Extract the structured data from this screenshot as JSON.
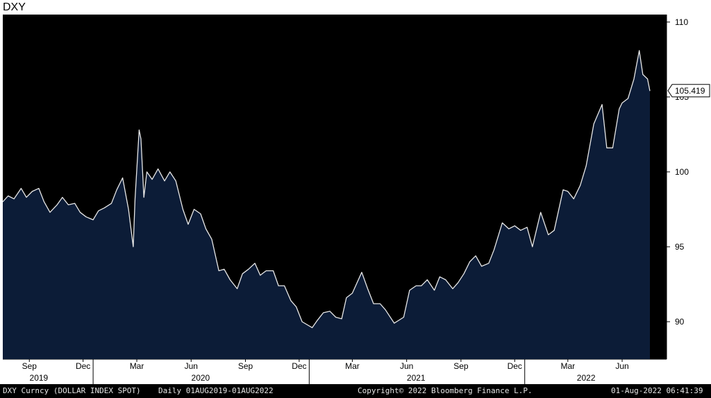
{
  "window_title": "DXY",
  "footer": {
    "ticker": "DXY Curncy (DOLLAR INDEX SPOT)",
    "range": "Daily 01AUG2019-01AUG2022",
    "copyright": "Copyright© 2022 Bloomberg Finance L.P.",
    "timestamp": "01-Aug-2022 06:41:39"
  },
  "chart_data": {
    "type": "area",
    "title": "DXY",
    "xlabel": "",
    "ylabel": "",
    "ylim": [
      87.5,
      110.5
    ],
    "yticks": [
      90,
      95,
      100,
      105,
      110
    ],
    "month_ticks": [
      {
        "label": "Sep",
        "date": "2019-09-15"
      },
      {
        "label": "Dec",
        "date": "2019-12-15"
      },
      {
        "label": "Mar",
        "date": "2020-03-15"
      },
      {
        "label": "Jun",
        "date": "2020-06-15"
      },
      {
        "label": "Sep",
        "date": "2020-09-15"
      },
      {
        "label": "Dec",
        "date": "2020-12-15"
      },
      {
        "label": "Mar",
        "date": "2021-03-15"
      },
      {
        "label": "Jun",
        "date": "2021-06-15"
      },
      {
        "label": "Sep",
        "date": "2021-09-15"
      },
      {
        "label": "Dec",
        "date": "2021-12-15"
      },
      {
        "label": "Mar",
        "date": "2022-03-15"
      },
      {
        "label": "Jun",
        "date": "2022-06-15"
      }
    ],
    "year_labels": [
      {
        "label": "2019",
        "date": "2019-10-01"
      },
      {
        "label": "2020",
        "date": "2020-07-01"
      },
      {
        "label": "2021",
        "date": "2021-07-01"
      },
      {
        "label": "2022",
        "date": "2022-04-15"
      }
    ],
    "year_dividers": [
      "2020-01-01",
      "2021-01-01",
      "2022-01-01"
    ],
    "last_value": "105.419",
    "colors": {
      "background": "#000000",
      "fill": "#0c1c37",
      "line": "#e8e8e8",
      "axis_text": "#000000"
    },
    "series": [
      {
        "name": "DXY Curncy",
        "x": [
          "2019-08-01",
          "2019-08-10",
          "2019-08-20",
          "2019-09-01",
          "2019-09-10",
          "2019-09-20",
          "2019-10-01",
          "2019-10-10",
          "2019-10-20",
          "2019-11-01",
          "2019-11-10",
          "2019-11-20",
          "2019-12-01",
          "2019-12-10",
          "2019-12-20",
          "2020-01-01",
          "2020-01-10",
          "2020-01-20",
          "2020-02-01",
          "2020-02-10",
          "2020-02-20",
          "2020-03-01",
          "2020-03-09",
          "2020-03-12",
          "2020-03-19",
          "2020-03-22",
          "2020-03-27",
          "2020-04-01",
          "2020-04-10",
          "2020-04-20",
          "2020-05-01",
          "2020-05-10",
          "2020-05-20",
          "2020-06-01",
          "2020-06-10",
          "2020-06-20",
          "2020-07-01",
          "2020-07-10",
          "2020-07-20",
          "2020-08-01",
          "2020-08-10",
          "2020-08-20",
          "2020-09-01",
          "2020-09-10",
          "2020-09-20",
          "2020-10-01",
          "2020-10-10",
          "2020-10-20",
          "2020-11-01",
          "2020-11-10",
          "2020-11-20",
          "2020-12-01",
          "2020-12-10",
          "2020-12-20",
          "2021-01-06",
          "2021-01-15",
          "2021-01-25",
          "2021-02-05",
          "2021-02-15",
          "2021-02-25",
          "2021-03-05",
          "2021-03-15",
          "2021-03-31",
          "2021-04-10",
          "2021-04-20",
          "2021-05-01",
          "2021-05-10",
          "2021-05-25",
          "2021-06-10",
          "2021-06-20",
          "2021-07-01",
          "2021-07-10",
          "2021-07-20",
          "2021-08-01",
          "2021-08-10",
          "2021-08-20",
          "2021-09-01",
          "2021-09-10",
          "2021-09-20",
          "2021-09-30",
          "2021-10-10",
          "2021-10-20",
          "2021-11-01",
          "2021-11-10",
          "2021-11-24",
          "2021-12-05",
          "2021-12-15",
          "2021-12-25",
          "2022-01-05",
          "2022-01-14",
          "2022-01-28",
          "2022-02-10",
          "2022-02-20",
          "2022-03-07",
          "2022-03-15",
          "2022-03-25",
          "2022-04-05",
          "2022-04-15",
          "2022-04-28",
          "2022-05-12",
          "2022-05-20",
          "2022-05-30",
          "2022-06-10",
          "2022-06-15",
          "2022-06-25",
          "2022-07-05",
          "2022-07-14",
          "2022-07-20",
          "2022-07-28",
          "2022-08-01"
        ],
        "values": [
          98.0,
          98.4,
          98.2,
          98.9,
          98.3,
          98.7,
          98.9,
          98.0,
          97.3,
          97.8,
          98.3,
          97.8,
          97.9,
          97.3,
          97.0,
          96.8,
          97.4,
          97.6,
          97.9,
          98.8,
          99.6,
          97.5,
          95.0,
          98.2,
          102.8,
          102.2,
          98.3,
          100.0,
          99.5,
          100.2,
          99.4,
          100.0,
          99.4,
          97.5,
          96.5,
          97.5,
          97.2,
          96.2,
          95.5,
          93.4,
          93.5,
          92.8,
          92.2,
          93.2,
          93.5,
          93.9,
          93.1,
          93.4,
          93.4,
          92.4,
          92.4,
          91.4,
          91.0,
          90.0,
          89.6,
          90.1,
          90.6,
          90.7,
          90.3,
          90.2,
          91.6,
          91.9,
          93.3,
          92.2,
          91.2,
          91.2,
          90.8,
          89.9,
          90.3,
          92.1,
          92.4,
          92.4,
          92.8,
          92.1,
          93.0,
          92.8,
          92.2,
          92.6,
          93.2,
          94.0,
          94.4,
          93.7,
          93.9,
          94.8,
          96.6,
          96.2,
          96.4,
          96.1,
          96.3,
          95.0,
          97.3,
          95.8,
          96.1,
          98.8,
          98.7,
          98.2,
          99.1,
          100.4,
          103.2,
          104.5,
          101.6,
          101.6,
          104.2,
          104.6,
          104.9,
          106.2,
          108.1,
          106.5,
          106.2,
          105.4
        ]
      }
    ]
  }
}
